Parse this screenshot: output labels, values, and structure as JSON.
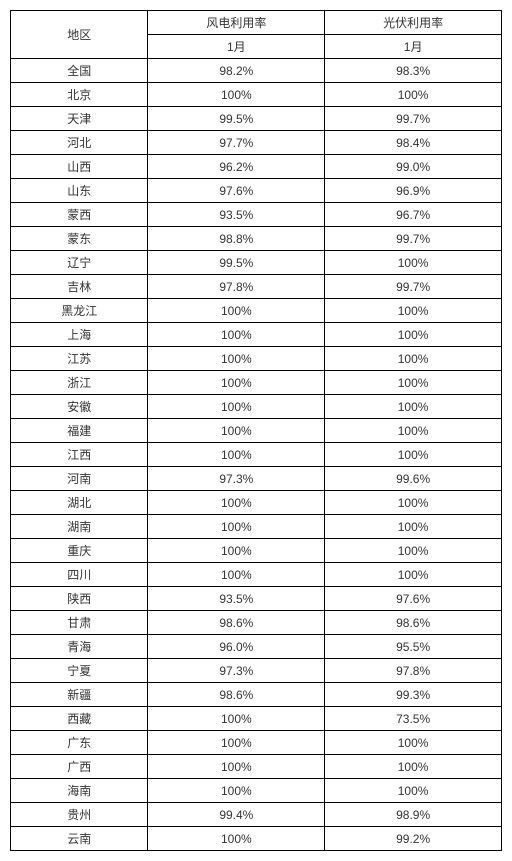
{
  "table": {
    "header": {
      "region": "地区",
      "wind": "风电利用率",
      "solar": "光伏利用率",
      "month": "1月"
    },
    "rows": [
      {
        "region": "全国",
        "wind": "98.2%",
        "solar": "98.3%"
      },
      {
        "region": "北京",
        "wind": "100%",
        "solar": "100%"
      },
      {
        "region": "天津",
        "wind": "99.5%",
        "solar": "99.7%"
      },
      {
        "region": "河北",
        "wind": "97.7%",
        "solar": "98.4%"
      },
      {
        "region": "山西",
        "wind": "96.2%",
        "solar": "99.0%"
      },
      {
        "region": "山东",
        "wind": "97.6%",
        "solar": "96.9%"
      },
      {
        "region": "蒙西",
        "wind": "93.5%",
        "solar": "96.7%"
      },
      {
        "region": "蒙东",
        "wind": "98.8%",
        "solar": "99.7%"
      },
      {
        "region": "辽宁",
        "wind": "99.5%",
        "solar": "100%"
      },
      {
        "region": "吉林",
        "wind": "97.8%",
        "solar": "99.7%"
      },
      {
        "region": "黑龙江",
        "wind": "100%",
        "solar": "100%"
      },
      {
        "region": "上海",
        "wind": "100%",
        "solar": "100%"
      },
      {
        "region": "江苏",
        "wind": "100%",
        "solar": "100%"
      },
      {
        "region": "浙江",
        "wind": "100%",
        "solar": "100%"
      },
      {
        "region": "安徽",
        "wind": "100%",
        "solar": "100%"
      },
      {
        "region": "福建",
        "wind": "100%",
        "solar": "100%"
      },
      {
        "region": "江西",
        "wind": "100%",
        "solar": "100%"
      },
      {
        "region": "河南",
        "wind": "97.3%",
        "solar": "99.6%"
      },
      {
        "region": "湖北",
        "wind": "100%",
        "solar": "100%"
      },
      {
        "region": "湖南",
        "wind": "100%",
        "solar": "100%"
      },
      {
        "region": "重庆",
        "wind": "100%",
        "solar": "100%"
      },
      {
        "region": "四川",
        "wind": "100%",
        "solar": "100%"
      },
      {
        "region": "陕西",
        "wind": "93.5%",
        "solar": "97.6%"
      },
      {
        "region": "甘肃",
        "wind": "98.6%",
        "solar": "98.6%"
      },
      {
        "region": "青海",
        "wind": "96.0%",
        "solar": "95.5%"
      },
      {
        "region": "宁夏",
        "wind": "97.3%",
        "solar": "97.8%"
      },
      {
        "region": "新疆",
        "wind": "98.6%",
        "solar": "99.3%"
      },
      {
        "region": "西藏",
        "wind": "100%",
        "solar": "73.5%"
      },
      {
        "region": "广东",
        "wind": "100%",
        "solar": "100%"
      },
      {
        "region": "广西",
        "wind": "100%",
        "solar": "100%"
      },
      {
        "region": "海南",
        "wind": "100%",
        "solar": "100%"
      },
      {
        "region": "贵州",
        "wind": "99.4%",
        "solar": "98.9%"
      },
      {
        "region": "云南",
        "wind": "100%",
        "solar": "99.2%"
      }
    ]
  }
}
